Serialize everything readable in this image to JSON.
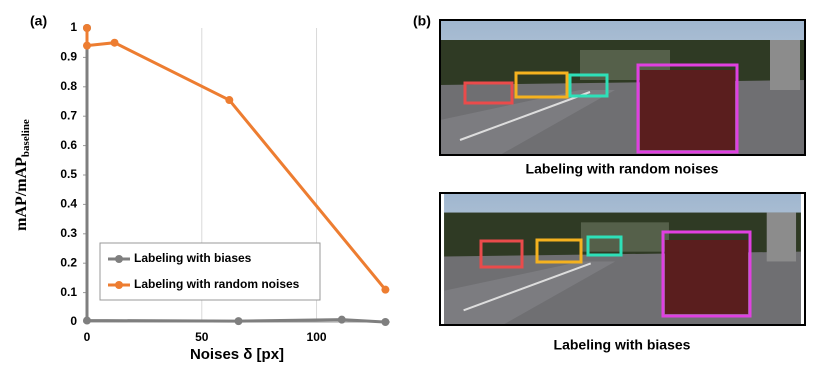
{
  "chart_data": {
    "type": "line",
    "panel_label": "(a)",
    "ylabel": {
      "main": "mAP/mAP",
      "subscript": "baseline"
    },
    "xlabel": "Noises δ [px]",
    "xlim": [
      0,
      132
    ],
    "xticks": [
      0,
      50,
      100
    ],
    "ylim": [
      0,
      1
    ],
    "yticks": [
      0,
      0.1,
      0.2,
      0.3,
      0.4,
      0.5,
      0.6,
      0.7,
      0.8,
      0.9,
      1
    ],
    "grid": true,
    "legend": "lower left",
    "series": [
      {
        "name": "Labeling with biases",
        "color": "#7f7f7f",
        "x": [
          0,
          0,
          66,
          111,
          130
        ],
        "values": [
          1.0,
          0.005,
          0.003,
          0.008,
          0.0
        ]
      },
      {
        "name": "Labeling with random noises",
        "color": "#ed7d31",
        "x": [
          0,
          0,
          12,
          62,
          130
        ],
        "values": [
          1.0,
          0.94,
          0.95,
          0.755,
          0.11
        ]
      }
    ]
  },
  "figure": {
    "panel_label": "(b)",
    "images": [
      {
        "caption": "Labeling with random noises"
      },
      {
        "caption": "Labeling with biases"
      }
    ]
  }
}
